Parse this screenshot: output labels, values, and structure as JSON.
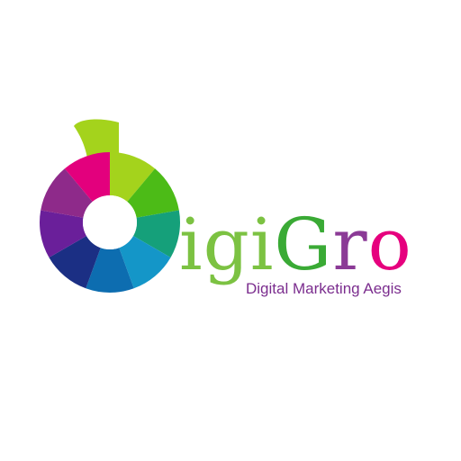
{
  "brand": {
    "wordmark_letters": [
      {
        "char": "i",
        "color": "#7cc242"
      },
      {
        "char": "g",
        "color": "#7cc242"
      },
      {
        "char": "i",
        "color": "#7cc242"
      },
      {
        "char": "G",
        "color": "#3aaa35"
      },
      {
        "char": "r",
        "color": "#8b3a96"
      },
      {
        "char": "o",
        "color": "#e6007e"
      }
    ],
    "tagline": "Digital Marketing Aegis",
    "tagline_color": "#7b2d8e"
  },
  "mark": {
    "segment_colors": [
      "#a4d31c",
      "#4cbb17",
      "#15a07a",
      "#1496c8",
      "#0d6db0",
      "#1b2f84",
      "#6a1f9a",
      "#8e2a8a",
      "#e3007d"
    ],
    "tail_color": "#a4d31c"
  }
}
